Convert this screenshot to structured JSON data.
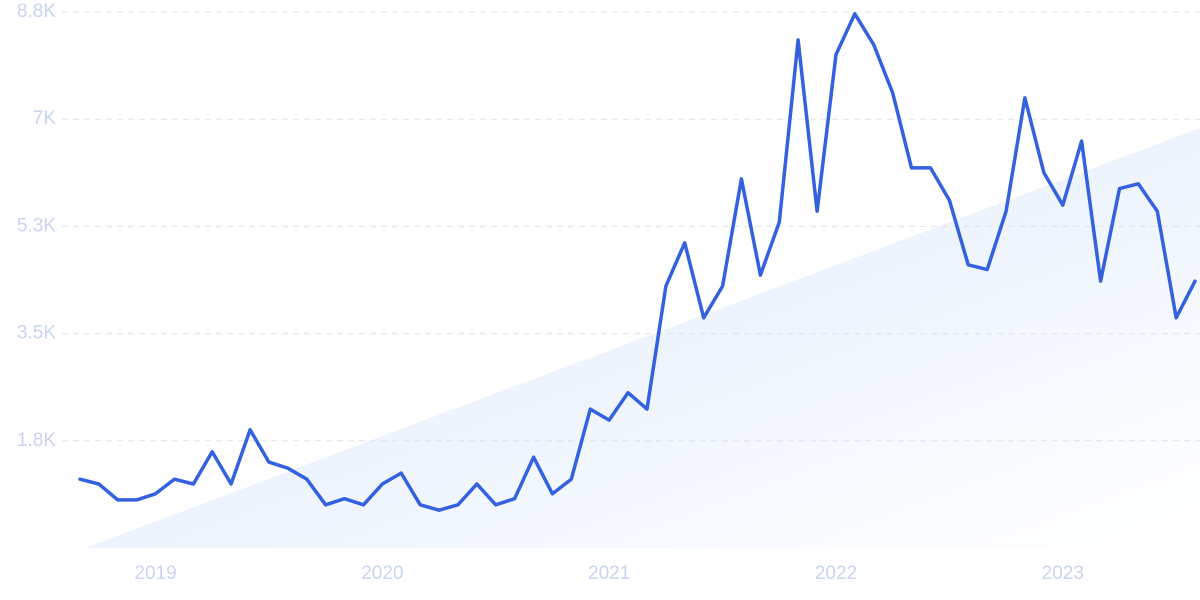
{
  "chart_data": {
    "type": "line",
    "x": [
      2018.667,
      2018.75,
      2018.833,
      2018.917,
      2019.0,
      2019.083,
      2019.167,
      2019.25,
      2019.333,
      2019.417,
      2019.5,
      2019.583,
      2019.667,
      2019.75,
      2019.833,
      2019.917,
      2020.0,
      2020.083,
      2020.167,
      2020.25,
      2020.333,
      2020.417,
      2020.5,
      2020.583,
      2020.667,
      2020.75,
      2020.833,
      2020.917,
      2021.0,
      2021.083,
      2021.167,
      2021.25,
      2021.333,
      2021.417,
      2021.5,
      2021.583,
      2021.667,
      2021.75,
      2021.833,
      2021.917,
      2022.0,
      2022.083,
      2022.167,
      2022.25,
      2022.333,
      2022.417,
      2022.5,
      2022.583,
      2022.667,
      2022.75,
      2022.833,
      2022.917,
      2023.0,
      2023.083,
      2023.167,
      2023.25,
      2023.333,
      2023.417,
      2023.5,
      2023.583
    ],
    "values": [
      1130,
      1050,
      790,
      790,
      890,
      1130,
      1050,
      1580,
      1050,
      1940,
      1410,
      1310,
      1130,
      710,
      810,
      710,
      1050,
      1230,
      710,
      620,
      710,
      1050,
      710,
      810,
      1490,
      890,
      1130,
      2280,
      2100,
      2550,
      2280,
      4300,
      5010,
      3780,
      4300,
      6060,
      4480,
      5350,
      8340,
      5530,
      8100,
      8770,
      8260,
      7470,
      6240,
      6240,
      5710,
      4650,
      4570,
      5530,
      7390,
      6160,
      5630,
      6680,
      4380,
      5900,
      5980,
      5530,
      3780,
      4380
    ],
    "color": "#3461e0",
    "xlim": [
      2018.667,
      2023.583
    ],
    "xticks": [
      2019,
      2020,
      2021,
      2022,
      2023
    ],
    "ylim": [
      0,
      8800
    ],
    "yticks": [
      {
        "value": 1760,
        "label": "1.8K"
      },
      {
        "value": 3520,
        "label": "3.5K"
      },
      {
        "value": 5280,
        "label": "5.3K"
      },
      {
        "value": 7040,
        "label": "7K"
      },
      {
        "value": 8800,
        "label": "8.8K"
      }
    ],
    "grid": true
  }
}
